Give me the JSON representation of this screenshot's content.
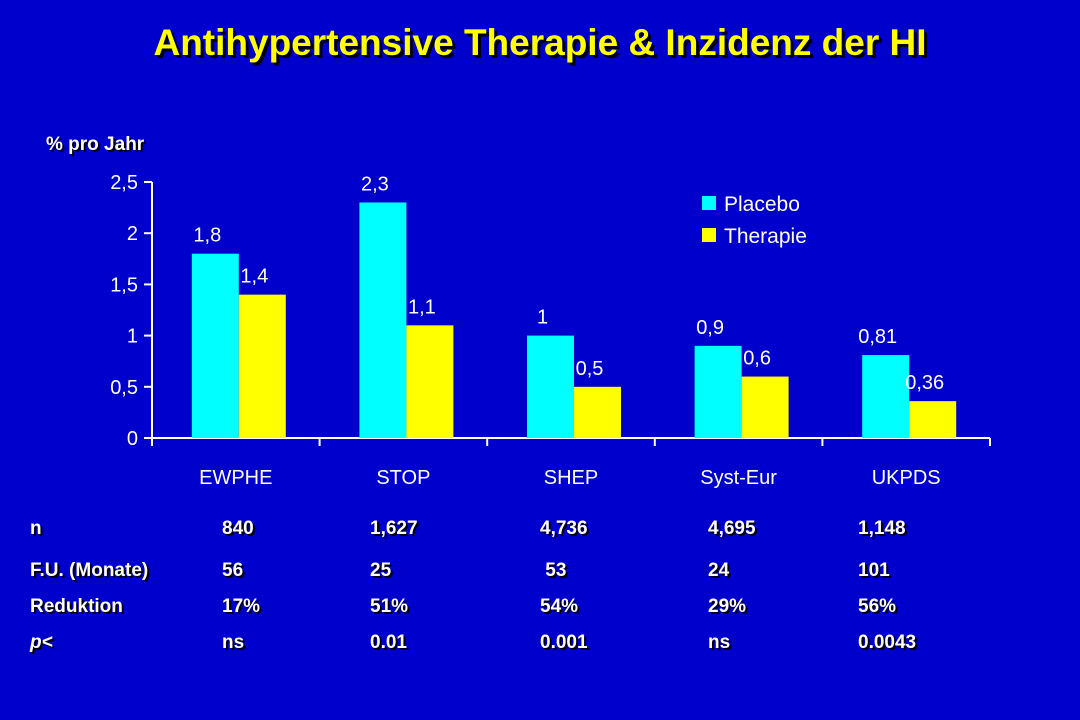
{
  "title": "Antihypertensive Therapie & Inzidenz der HI",
  "colors": {
    "background": "#0000cc",
    "title": "#ffff00",
    "placebo": "#00ffff",
    "therapie": "#ffff00",
    "text": "#ffffff"
  },
  "chart_data": {
    "type": "bar",
    "ylabel": "% pro Jahr",
    "ylim": [
      0,
      2.5
    ],
    "yticks": [
      "0",
      "0,5",
      "1",
      "1,5",
      "2",
      "2,5"
    ],
    "ytick_values": [
      0,
      0.5,
      1,
      1.5,
      2,
      2.5
    ],
    "categories": [
      "EWPHE",
      "STOP",
      "SHEP",
      "Syst-Eur",
      "UKPDS"
    ],
    "series": [
      {
        "name": "Placebo",
        "values": [
          1.8,
          2.3,
          1,
          0.9,
          0.81
        ],
        "labels": [
          "1,8",
          "2,3",
          "1",
          "0,9",
          "0,81"
        ],
        "color": "#00ffff"
      },
      {
        "name": "Therapie",
        "values": [
          1.4,
          1.1,
          0.5,
          0.6,
          0.36
        ],
        "labels": [
          "1,4",
          "1,1",
          "0,5",
          "0,6",
          "0,36"
        ],
        "color": "#ffff00"
      }
    ],
    "legend_position": "top-right",
    "grid": false
  },
  "table": {
    "rows": [
      {
        "label": "n",
        "values": [
          "840",
          "1,627",
          "4,736",
          "4,695",
          "1,148"
        ]
      },
      {
        "label": "F.U. (Monate)",
        "values": [
          "56",
          "25",
          " 53",
          "24",
          "101"
        ]
      },
      {
        "label": "Reduktion",
        "values": [
          "17%",
          "51%",
          "54%",
          "29%",
          "56%"
        ]
      },
      {
        "label": "p<",
        "values": [
          "ns",
          "0.01",
          "0.001",
          "ns",
          "0.0043"
        ]
      }
    ]
  }
}
